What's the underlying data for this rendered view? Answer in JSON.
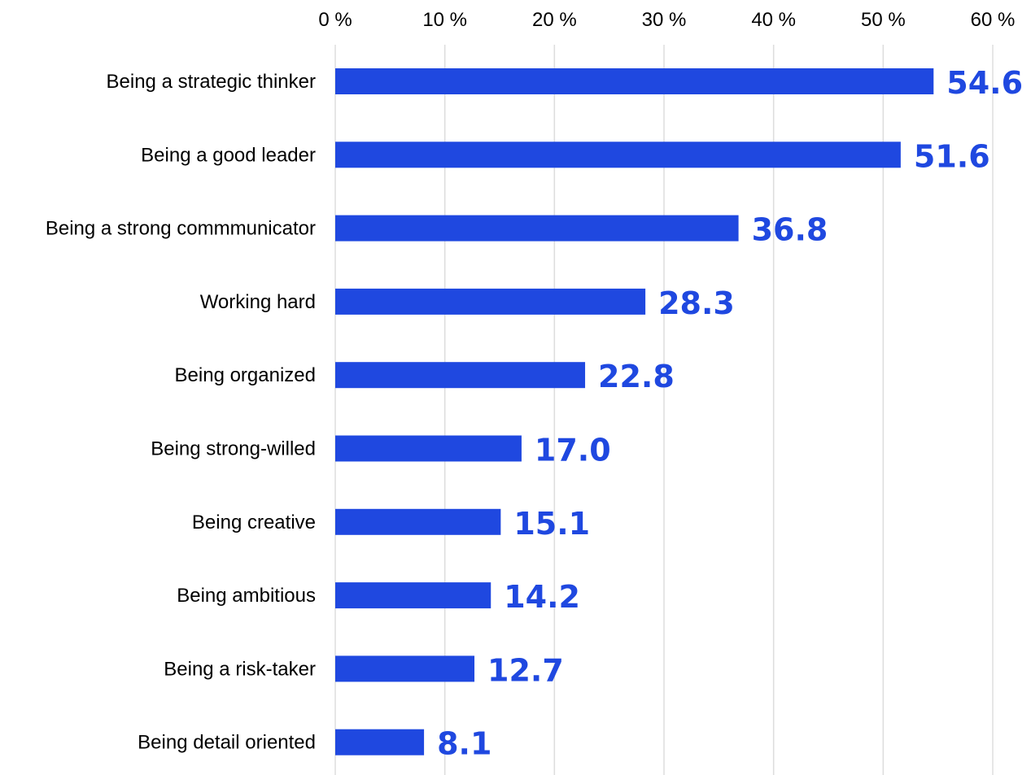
{
  "chart_data": {
    "type": "bar",
    "orientation": "horizontal",
    "categories": [
      "Being a strategic thinker",
      "Being a good leader",
      "Being a strong commmunicator",
      "Working hard",
      "Being organized",
      "Being strong-willed",
      "Being creative",
      "Being ambitious",
      "Being a risk-taker",
      "Being detail oriented"
    ],
    "values": [
      54.6,
      51.6,
      36.8,
      28.3,
      22.8,
      17.0,
      15.1,
      14.2,
      12.7,
      8.1
    ],
    "value_labels": [
      "54.6",
      "51.6",
      "36.8",
      "28.3",
      "22.8",
      "17.0",
      "15.1",
      "14.2",
      "12.7",
      "8.1"
    ],
    "xticks": [
      0,
      10,
      20,
      30,
      40,
      50,
      60
    ],
    "xtick_labels": [
      "0 %",
      "10 %",
      "20 %",
      "30 %",
      "40 %",
      "50 %",
      "60 %"
    ],
    "xlim": [
      0,
      60
    ],
    "xaxis_position": "top",
    "grid": true,
    "bar_color": "#1f48e0",
    "label_color": "#1f48e0",
    "grid_color": "#dddddd"
  }
}
